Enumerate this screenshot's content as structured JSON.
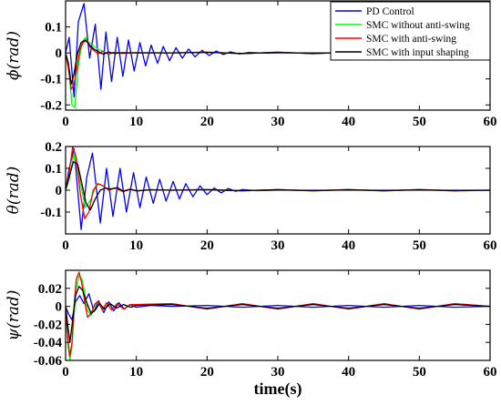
{
  "chart_data": {
    "type": "line",
    "xlabel": "time(s)",
    "xlim": [
      0,
      60
    ],
    "x_ticks": [
      "0",
      "10",
      "20",
      "30",
      "40",
      "50",
      "60"
    ],
    "legend": {
      "placement": "top-right",
      "entries": [
        {
          "name": "PD Control",
          "color": "#0000ff"
        },
        {
          "name": "SMC without anti-swing",
          "color": "#00ff00"
        },
        {
          "name": "SMC with anti-swing",
          "color": "#ff0000"
        },
        {
          "name": "SMC with input shaping",
          "color": "#000000"
        }
      ]
    },
    "panels": [
      {
        "ylabel": "ϕ(rad)",
        "ylim": [
          -0.22,
          0.2
        ],
        "y_ticks": [
          {
            "v": 0.1,
            "t": "0.1"
          },
          {
            "v": 0,
            "t": "0"
          },
          {
            "v": -0.1,
            "t": "-0.1"
          },
          {
            "v": -0.2,
            "t": "-0.2"
          }
        ],
        "series": [
          {
            "name": "PD Control",
            "color": "#0000ff",
            "x": [
              0,
              0.5,
              1.2,
              1.8,
              2.6,
              3.4,
              4.2,
              5.0,
              5.7,
              6.5,
              7.3,
              8.1,
              8.9,
              9.7,
              10.5,
              11.3,
              12.1,
              13.0,
              13.8,
              14.7,
              15.6,
              16.5,
              17.4,
              18.3,
              19.3,
              20.3,
              21.3,
              22.3,
              23.3,
              24.5,
              26,
              28,
              30,
              35,
              40,
              45,
              50,
              55,
              60
            ],
            "y": [
              0,
              0.06,
              -0.17,
              0.12,
              0.19,
              -0.02,
              0.11,
              -0.14,
              0.08,
              -0.11,
              0.06,
              -0.09,
              0.05,
              -0.07,
              0.04,
              -0.05,
              0.03,
              -0.04,
              0.025,
              -0.03,
              0.02,
              -0.02,
              0.015,
              -0.015,
              0.01,
              -0.01,
              0.007,
              -0.006,
              0.004,
              -0.004,
              0.002,
              -0.001,
              0,
              0,
              0,
              0,
              0,
              0,
              0
            ]
          },
          {
            "name": "SMC without anti-swing",
            "color": "#00ff00",
            "x": [
              0,
              0.4,
              0.9,
              1.3,
              1.8,
              2.3,
              2.8,
              3.3,
              3.8,
              4.3,
              4.9,
              5.5,
              6.2,
              7,
              8,
              10,
              15,
              20,
              25,
              30,
              35,
              40,
              45,
              50,
              55,
              60
            ],
            "y": [
              0,
              -0.05,
              -0.2,
              -0.21,
              -0.05,
              0.04,
              0.06,
              0.04,
              0.03,
              0.02,
              0.01,
              0.005,
              -0.005,
              0.003,
              -0.002,
              0.001,
              0,
              0.003,
              -0.003,
              0.003,
              -0.003,
              0.003,
              -0.003,
              0.003,
              -0.003,
              0
            ]
          },
          {
            "name": "SMC with anti-swing",
            "color": "#ff0000",
            "x": [
              0,
              0.4,
              0.8,
              1.2,
              1.6,
              2.0,
              2.5,
              3.0,
              3.5,
              4.0,
              4.6,
              5.2,
              6.0,
              7,
              8,
              10,
              15,
              20,
              25,
              30,
              35,
              40,
              45,
              50,
              55,
              60
            ],
            "y": [
              0,
              -0.06,
              -0.14,
              -0.12,
              -0.06,
              0.01,
              0.04,
              0.05,
              0.02,
              0.01,
              -0.005,
              0.006,
              -0.004,
              0.003,
              -0.002,
              0.001,
              0,
              0.003,
              -0.003,
              0.003,
              -0.003,
              0.003,
              -0.003,
              0.003,
              -0.003,
              0
            ]
          },
          {
            "name": "SMC with input shaping",
            "color": "#000000",
            "x": [
              0,
              0.4,
              0.8,
              1.2,
              1.7,
              2.2,
              2.8,
              3.4,
              4.0,
              4.6,
              5.3,
              6.1,
              7,
              8,
              10,
              15,
              20,
              25,
              30,
              35,
              40,
              45,
              50,
              55,
              60
            ],
            "y": [
              0,
              -0.04,
              -0.12,
              -0.08,
              0.0,
              0.04,
              0.05,
              0.03,
              0.015,
              0.005,
              -0.005,
              0.003,
              -0.002,
              0.001,
              0,
              0,
              0.002,
              -0.002,
              0.002,
              -0.002,
              0.002,
              -0.002,
              0.002,
              -0.002,
              0
            ]
          }
        ]
      },
      {
        "ylabel": "θ(rad)",
        "ylim": [
          -0.2,
          0.2
        ],
        "y_ticks": [
          {
            "v": 0.2,
            "t": "0.2"
          },
          {
            "v": 0.1,
            "t": "0.1"
          },
          {
            "v": 0,
            "t": "0"
          },
          {
            "v": -0.1,
            "t": "-0.1"
          }
        ],
        "series": [
          {
            "name": "PD Control",
            "color": "#0000ff",
            "x": [
              0,
              0.5,
              1.2,
              2.2,
              3.0,
              3.8,
              4.9,
              5.8,
              6.7,
              7.7,
              8.6,
              9.6,
              10.5,
              11.4,
              12.4,
              13.3,
              14.2,
              15.2,
              16.1,
              17.0,
              18,
              19,
              20,
              21,
              22,
              23,
              24,
              25,
              27,
              30,
              35,
              40,
              45,
              50,
              55,
              60
            ],
            "y": [
              0,
              0.1,
              0.19,
              -0.18,
              0.06,
              0.17,
              -0.15,
              0.1,
              -0.12,
              0.1,
              -0.1,
              0.08,
              -0.08,
              0.06,
              -0.06,
              0.05,
              -0.05,
              0.04,
              -0.04,
              0.03,
              -0.03,
              0.02,
              -0.02,
              0.01,
              -0.012,
              0.008,
              -0.005,
              0.003,
              -0.002,
              0,
              0,
              0,
              0,
              0,
              0,
              0
            ]
          },
          {
            "name": "SMC without anti-swing",
            "color": "#00ff00",
            "x": [
              0,
              0.5,
              1.2,
              2.0,
              2.8,
              3.6,
              4.4,
              5.2,
              6.0,
              7,
              8,
              9,
              10,
              12,
              15,
              20,
              25,
              30,
              35,
              40,
              45,
              50,
              55,
              60
            ],
            "y": [
              0,
              0.05,
              0.17,
              0.05,
              -0.08,
              -0.04,
              0.03,
              0.02,
              0.005,
              0.01,
              -0.005,
              0.004,
              -0.003,
              0.002,
              0,
              0.003,
              -0.003,
              0.003,
              -0.003,
              0.003,
              -0.003,
              0.003,
              -0.003,
              0
            ]
          },
          {
            "name": "SMC with anti-swing",
            "color": "#ff0000",
            "x": [
              0,
              0.5,
              1.0,
              1.5,
              2.1,
              2.7,
              3.3,
              3.9,
              4.6,
              5.3,
              6.1,
              7,
              8,
              9,
              10,
              12,
              15,
              20,
              25,
              30,
              35,
              40,
              45,
              50,
              55,
              60
            ],
            "y": [
              0,
              0.08,
              0.2,
              0.15,
              -0.02,
              -0.13,
              -0.1,
              0.0,
              0.03,
              0.02,
              0.0,
              0.01,
              -0.005,
              0.004,
              -0.003,
              0.002,
              0,
              0.003,
              -0.003,
              0.003,
              -0.003,
              0.003,
              -0.003,
              0.003,
              -0.003,
              0
            ]
          },
          {
            "name": "SMC with input shaping",
            "color": "#000000",
            "x": [
              0,
              0.5,
              1.1,
              1.7,
              2.3,
              2.9,
              3.5,
              4.2,
              4.9,
              5.6,
              6.4,
              7.3,
              8.2,
              9.2,
              10.2,
              12,
              15,
              20,
              25,
              30,
              35,
              40,
              45,
              50,
              55,
              60
            ],
            "y": [
              0,
              0.06,
              0.13,
              0.12,
              0.03,
              -0.06,
              -0.09,
              -0.04,
              0.0,
              0.01,
              0.005,
              0.012,
              -0.005,
              0.004,
              -0.003,
              0.002,
              0,
              0.002,
              -0.002,
              0.002,
              -0.002,
              0.002,
              -0.002,
              0.002,
              -0.002,
              0
            ]
          }
        ]
      },
      {
        "ylabel": "ψ(rad)",
        "ylim": [
          -0.06,
          0.04
        ],
        "y_ticks": [
          {
            "v": 0.02,
            "t": "0.02"
          },
          {
            "v": 0,
            "t": "0"
          },
          {
            "v": -0.02,
            "t": "-0.02"
          },
          {
            "v": -0.04,
            "t": "-0.04"
          },
          {
            "v": -0.06,
            "t": "-0.06"
          }
        ],
        "series": [
          {
            "name": "PD Control",
            "color": "#0000ff",
            "x": [
              0,
              0.4,
              0.9,
              1.4,
              2.0,
              2.6,
              3.3,
              4.0,
              4.7,
              5.4,
              6.1,
              6.8,
              7.5,
              8.3,
              9.1,
              10,
              12,
              15,
              20,
              25,
              30,
              35,
              40,
              45,
              50,
              55,
              60
            ],
            "y": [
              0,
              -0.008,
              -0.015,
              0.005,
              0.012,
              0.003,
              0.014,
              -0.006,
              0.006,
              -0.007,
              0.005,
              -0.005,
              0.004,
              -0.003,
              0.002,
              -0.001,
              0.001,
              0,
              0.001,
              -0.001,
              0.001,
              -0.001,
              0.001,
              -0.001,
              0.001,
              -0.001,
              0
            ]
          },
          {
            "name": "SMC without anti-swing",
            "color": "#00ff00",
            "x": [
              0,
              0.3,
              0.6,
              0.9,
              1.2,
              1.5,
              1.9,
              2.3,
              2.7,
              3.1,
              3.6,
              4.1,
              4.6,
              5.2,
              5.8,
              6.5,
              7.3,
              8.2,
              9.2,
              10,
              15,
              20,
              25,
              30,
              35,
              40,
              45,
              50,
              55,
              60
            ],
            "y": [
              0,
              -0.04,
              -0.06,
              -0.045,
              -0.01,
              0.02,
              0.034,
              0.03,
              0.015,
              -0.005,
              -0.01,
              0.0,
              0.006,
              -0.005,
              0.004,
              -0.004,
              0.003,
              -0.003,
              0.002,
              0.002,
              0.003,
              -0.003,
              0.003,
              -0.003,
              0.003,
              -0.003,
              0.003,
              -0.003,
              0.003,
              0
            ]
          },
          {
            "name": "SMC with anti-swing",
            "color": "#ff0000",
            "x": [
              0,
              0.3,
              0.6,
              0.9,
              1.2,
              1.5,
              1.9,
              2.3,
              2.7,
              3.1,
              3.6,
              4.1,
              4.6,
              5.2,
              5.8,
              6.5,
              7.3,
              8.2,
              9.2,
              10,
              15,
              20,
              25,
              30,
              35,
              40,
              45,
              50,
              55,
              60
            ],
            "y": [
              0,
              -0.035,
              -0.055,
              -0.04,
              0.0,
              0.03,
              0.038,
              0.025,
              0.005,
              -0.012,
              -0.008,
              0.002,
              0.006,
              -0.004,
              0.004,
              -0.004,
              0.003,
              -0.003,
              0.002,
              0.002,
              0.003,
              -0.003,
              0.003,
              -0.003,
              0.003,
              -0.003,
              0.003,
              -0.003,
              0.003,
              0
            ]
          },
          {
            "name": "SMC with input shaping",
            "color": "#000000",
            "x": [
              0,
              0.3,
              0.6,
              1.0,
              1.4,
              1.9,
              2.4,
              3.0,
              3.6,
              4.2,
              4.8,
              5.5,
              6.3,
              7.2,
              8.2,
              9.2,
              10,
              15,
              20,
              25,
              30,
              35,
              40,
              45,
              50,
              55,
              60
            ],
            "y": [
              0,
              -0.02,
              -0.04,
              -0.015,
              0.012,
              0.022,
              0.018,
              0.004,
              -0.008,
              -0.004,
              0.003,
              -0.003,
              0.003,
              -0.002,
              0.002,
              -0.001,
              0.001,
              0.002,
              -0.002,
              0.002,
              -0.002,
              0.002,
              -0.002,
              0.002,
              -0.002,
              0.002,
              0
            ]
          }
        ]
      }
    ]
  }
}
